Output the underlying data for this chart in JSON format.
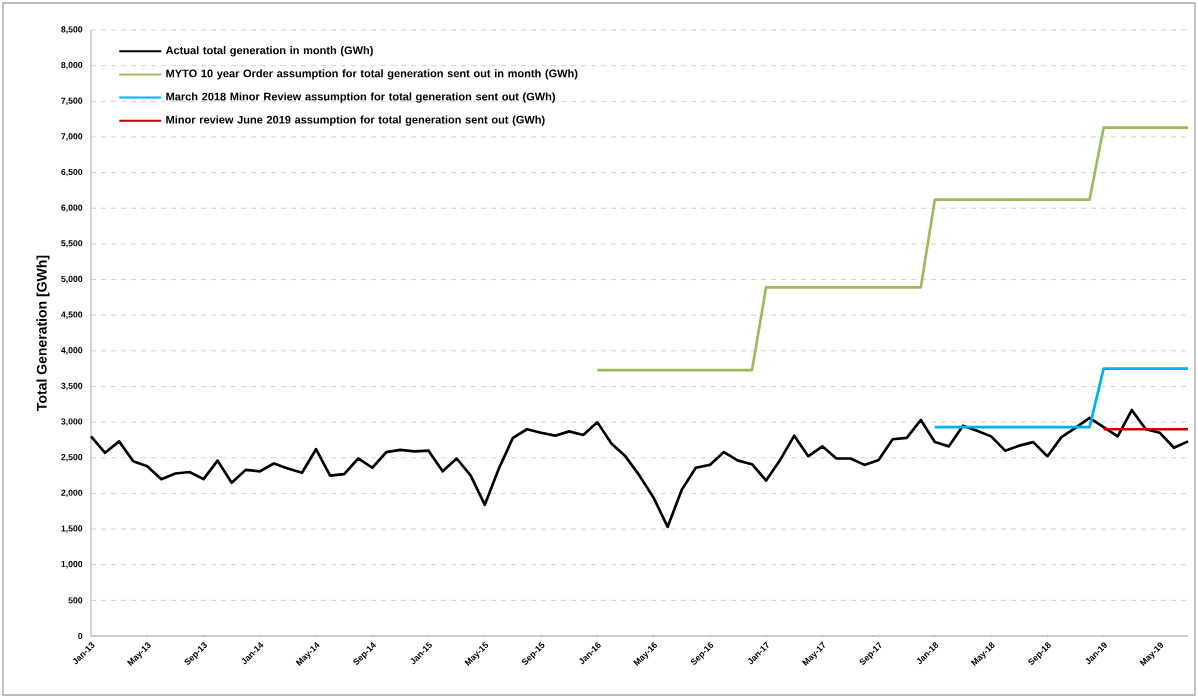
{
  "chart_data": {
    "type": "line",
    "ylabel": "Total Generation [GWh]",
    "categories": [
      "Jan-13",
      null,
      null,
      null,
      "May-13",
      null,
      null,
      null,
      "Sep-13",
      null,
      null,
      null,
      "Jan-14",
      null,
      null,
      null,
      "May-14",
      null,
      null,
      null,
      "Sep-14",
      null,
      null,
      null,
      "Jan-15",
      null,
      null,
      null,
      "May-15",
      null,
      null,
      null,
      "Sep-15",
      null,
      null,
      null,
      "Jan-16",
      null,
      null,
      null,
      "May-16",
      null,
      null,
      null,
      "Sep-16",
      null,
      null,
      null,
      "Jan-17",
      null,
      null,
      null,
      "May-17",
      null,
      null,
      null,
      "Sep-17",
      null,
      null,
      null,
      "Jan-18",
      null,
      null,
      null,
      "May-18",
      null,
      null,
      null,
      "Sep-18",
      null,
      null,
      null,
      "Jan-19",
      null,
      null,
      null,
      "May-19",
      null,
      null
    ],
    "series": [
      {
        "name": "Actual total generation in month (GWh)",
        "color": "#000000",
        "values": [
          2800,
          2570,
          2730,
          2450,
          2380,
          2200,
          2280,
          2300,
          2200,
          2460,
          2150,
          2330,
          2310,
          2420,
          2350,
          2290,
          2620,
          2250,
          2270,
          2490,
          2360,
          2580,
          2610,
          2590,
          2600,
          2310,
          2490,
          2250,
          1840,
          2350,
          2780,
          2900,
          2850,
          2810,
          2870,
          2820,
          3000,
          2700,
          2520,
          2250,
          1940,
          1530,
          2050,
          2360,
          2400,
          2580,
          2460,
          2410,
          2180,
          2470,
          2810,
          2520,
          2660,
          2490,
          2490,
          2400,
          2470,
          2760,
          2780,
          3030,
          2720,
          2660,
          2950,
          2880,
          2800,
          2600,
          2670,
          2720,
          2520,
          2790,
          2920,
          3060,
          2930,
          2800,
          3170,
          2900,
          2850,
          2640,
          2730
        ]
      },
      {
        "name": "MYTO 10 year Order assumption for total generation sent out in month (GWh)",
        "color": "#9bbb59",
        "values": [
          null,
          null,
          null,
          null,
          null,
          null,
          null,
          null,
          null,
          null,
          null,
          null,
          null,
          null,
          null,
          null,
          null,
          null,
          null,
          null,
          null,
          null,
          null,
          null,
          null,
          null,
          null,
          null,
          null,
          null,
          null,
          null,
          null,
          null,
          null,
          null,
          3730,
          3730,
          3730,
          3730,
          3730,
          3730,
          3730,
          3730,
          3730,
          3730,
          3730,
          3730,
          4890,
          4890,
          4890,
          4890,
          4890,
          4890,
          4890,
          4890,
          4890,
          4890,
          4890,
          4890,
          6120,
          6120,
          6120,
          6120,
          6120,
          6120,
          6120,
          6120,
          6120,
          6120,
          6120,
          6120,
          7130,
          7130,
          7130,
          7130,
          7130,
          7130,
          7130
        ]
      },
      {
        "name": "March 2018 Minor Review assumption for total generation sent out (GWh)",
        "color": "#00b0f0",
        "values": [
          null,
          null,
          null,
          null,
          null,
          null,
          null,
          null,
          null,
          null,
          null,
          null,
          null,
          null,
          null,
          null,
          null,
          null,
          null,
          null,
          null,
          null,
          null,
          null,
          null,
          null,
          null,
          null,
          null,
          null,
          null,
          null,
          null,
          null,
          null,
          null,
          null,
          null,
          null,
          null,
          null,
          null,
          null,
          null,
          null,
          null,
          null,
          null,
          null,
          null,
          null,
          null,
          null,
          null,
          null,
          null,
          null,
          null,
          null,
          null,
          2930,
          2930,
          2930,
          2930,
          2930,
          2930,
          2930,
          2930,
          2930,
          2930,
          2930,
          2930,
          3750,
          3750,
          3750,
          3750,
          3750,
          3750,
          3750
        ]
      },
      {
        "name": "Minor review June 2019 assumption for total generation sent out (GWh)",
        "color": "#c00000",
        "values": [
          null,
          null,
          null,
          null,
          null,
          null,
          null,
          null,
          null,
          null,
          null,
          null,
          null,
          null,
          null,
          null,
          null,
          null,
          null,
          null,
          null,
          null,
          null,
          null,
          null,
          null,
          null,
          null,
          null,
          null,
          null,
          null,
          null,
          null,
          null,
          null,
          null,
          null,
          null,
          null,
          null,
          null,
          null,
          null,
          null,
          null,
          null,
          null,
          null,
          null,
          null,
          null,
          null,
          null,
          null,
          null,
          null,
          null,
          null,
          null,
          null,
          null,
          null,
          null,
          null,
          null,
          null,
          null,
          null,
          null,
          null,
          null,
          2900,
          2900,
          2900,
          2900,
          2900,
          2900,
          2900
        ]
      }
    ],
    "ylim": [
      0,
      8500
    ],
    "yticks": [
      {
        "value": 0,
        "label": "0"
      },
      {
        "value": 500,
        "label": "500"
      },
      {
        "value": 1000,
        "label": "1,000"
      },
      {
        "value": 1500,
        "label": "1,500"
      },
      {
        "value": 2000,
        "label": "2,000"
      },
      {
        "value": 2500,
        "label": "2,500"
      },
      {
        "value": 3000,
        "label": "3,000"
      },
      {
        "value": 3500,
        "label": "3,500"
      },
      {
        "value": 4000,
        "label": "4,000"
      },
      {
        "value": 4500,
        "label": "4,500"
      },
      {
        "value": 5000,
        "label": "5,000"
      },
      {
        "value": 5500,
        "label": "5,500"
      },
      {
        "value": 6000,
        "label": "6,000"
      },
      {
        "value": 6500,
        "label": "6,500"
      },
      {
        "value": 7000,
        "label": "7,000"
      },
      {
        "value": 7500,
        "label": "7,500"
      },
      {
        "value": 8000,
        "label": "8,000"
      },
      {
        "value": 8500,
        "label": "8,500"
      }
    ],
    "grid": "y",
    "legend": "top left",
    "marker": "none",
    "line_style": "solid"
  }
}
